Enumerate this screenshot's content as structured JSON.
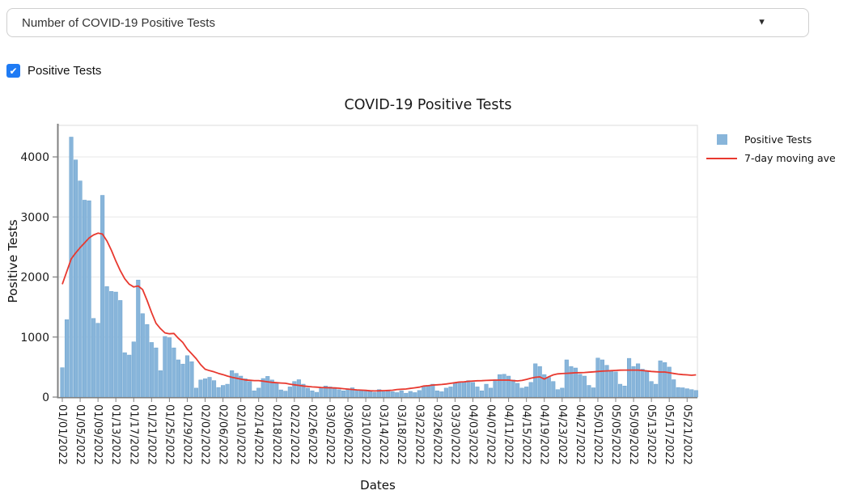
{
  "ui": {
    "dropdown": {
      "value": "Number of COVID-19 Positive Tests",
      "caret": "▼"
    },
    "checkbox": {
      "label": "Positive Tests",
      "checked": true,
      "check_glyph": "✔",
      "accent": "#1f7bf4"
    }
  },
  "chart_data": {
    "type": "bar",
    "title": "COVID-19 Positive Tests",
    "xlabel": "Dates",
    "ylabel": "Positive Tests",
    "ylim": [
      0,
      4540
    ],
    "yticks": [
      0,
      1000,
      2000,
      3000,
      4000
    ],
    "grid": true,
    "legend_position": "top-right",
    "x_tick_every": 4,
    "categories": [
      "01/01/2022",
      "01/02/2022",
      "01/03/2022",
      "01/04/2022",
      "01/05/2022",
      "01/06/2022",
      "01/07/2022",
      "01/08/2022",
      "01/09/2022",
      "01/10/2022",
      "01/11/2022",
      "01/12/2022",
      "01/13/2022",
      "01/14/2022",
      "01/15/2022",
      "01/16/2022",
      "01/17/2022",
      "01/18/2022",
      "01/19/2022",
      "01/20/2022",
      "01/21/2022",
      "01/22/2022",
      "01/23/2022",
      "01/24/2022",
      "01/25/2022",
      "01/26/2022",
      "01/27/2022",
      "01/28/2022",
      "01/29/2022",
      "01/30/2022",
      "01/31/2022",
      "02/01/2022",
      "02/02/2022",
      "02/03/2022",
      "02/04/2022",
      "02/05/2022",
      "02/06/2022",
      "02/07/2022",
      "02/08/2022",
      "02/09/2022",
      "02/10/2022",
      "02/11/2022",
      "02/12/2022",
      "02/13/2022",
      "02/14/2022",
      "02/15/2022",
      "02/16/2022",
      "02/17/2022",
      "02/18/2022",
      "02/19/2022",
      "02/20/2022",
      "02/21/2022",
      "02/22/2022",
      "02/23/2022",
      "02/24/2022",
      "02/25/2022",
      "02/26/2022",
      "02/27/2022",
      "02/28/2022",
      "03/01/2022",
      "03/02/2022",
      "03/03/2022",
      "03/04/2022",
      "03/05/2022",
      "03/06/2022",
      "03/07/2022",
      "03/08/2022",
      "03/09/2022",
      "03/10/2022",
      "03/11/2022",
      "03/12/2022",
      "03/13/2022",
      "03/14/2022",
      "03/15/2022",
      "03/16/2022",
      "03/17/2022",
      "03/18/2022",
      "03/19/2022",
      "03/20/2022",
      "03/21/2022",
      "03/22/2022",
      "03/23/2022",
      "03/24/2022",
      "03/25/2022",
      "03/26/2022",
      "03/27/2022",
      "03/28/2022",
      "03/29/2022",
      "03/30/2022",
      "03/31/2022",
      "04/01/2022",
      "04/02/2022",
      "04/03/2022",
      "04/04/2022",
      "04/05/2022",
      "04/06/2022",
      "04/07/2022",
      "04/08/2022",
      "04/09/2022",
      "04/10/2022",
      "04/11/2022",
      "04/12/2022",
      "04/13/2022",
      "04/14/2022",
      "04/15/2022",
      "04/16/2022",
      "04/17/2022",
      "04/18/2022",
      "04/19/2022",
      "04/20/2022",
      "04/21/2022",
      "04/22/2022",
      "04/23/2022",
      "04/24/2022",
      "04/25/2022",
      "04/26/2022",
      "04/27/2022",
      "04/28/2022",
      "04/29/2022",
      "04/30/2022",
      "05/01/2022",
      "05/02/2022",
      "05/03/2022",
      "05/04/2022",
      "05/05/2022",
      "05/06/2022",
      "05/07/2022",
      "05/08/2022",
      "05/09/2022",
      "05/10/2022",
      "05/11/2022",
      "05/12/2022",
      "05/13/2022",
      "05/14/2022",
      "05/15/2022",
      "05/16/2022",
      "05/17/2022",
      "05/18/2022",
      "05/19/2022",
      "05/20/2022",
      "05/21/2022",
      "05/22/2022",
      "05/23/2022"
    ],
    "series": [
      {
        "name": "Positive Tests",
        "type": "bar",
        "color": "#88b5da",
        "edge_color": "#6ba3cf",
        "values": [
          490,
          1290,
          4330,
          3950,
          3600,
          3280,
          3270,
          1310,
          1230,
          3360,
          1840,
          1760,
          1750,
          1610,
          740,
          700,
          920,
          1950,
          1390,
          1210,
          910,
          820,
          440,
          1010,
          990,
          820,
          620,
          550,
          690,
          590,
          150,
          285,
          305,
          330,
          275,
          160,
          195,
          215,
          440,
          395,
          350,
          305,
          260,
          105,
          150,
          310,
          345,
          285,
          240,
          120,
          100,
          170,
          260,
          290,
          215,
          150,
          105,
          80,
          150,
          185,
          170,
          160,
          125,
          105,
          140,
          155,
          125,
          105,
          110,
          95,
          80,
          125,
          90,
          105,
          90,
          75,
          105,
          65,
          95,
          75,
          110,
          185,
          195,
          215,
          105,
          90,
          150,
          170,
          245,
          255,
          245,
          275,
          245,
          170,
          105,
          215,
          150,
          290,
          375,
          380,
          350,
          285,
          230,
          150,
          170,
          245,
          555,
          510,
          375,
          330,
          260,
          125,
          150,
          620,
          510,
          485,
          380,
          350,
          195,
          155,
          650,
          620,
          530,
          440,
          420,
          215,
          185,
          645,
          510,
          555,
          465,
          440,
          260,
          215,
          605,
          575,
          500,
          290,
          160,
          155,
          140,
          125,
          110
        ]
      },
      {
        "name": "7-day moving ave",
        "type": "line",
        "color": "#e8392f",
        "values": [
          1880,
          2090,
          2300,
          2400,
          2490,
          2570,
          2650,
          2700,
          2730,
          2715,
          2600,
          2445,
          2265,
          2105,
          1970,
          1880,
          1835,
          1850,
          1790,
          1610,
          1410,
          1230,
          1140,
          1070,
          1055,
          1060,
          980,
          910,
          800,
          720,
          640,
          540,
          465,
          440,
          420,
          395,
          375,
          350,
          330,
          315,
          300,
          285,
          280,
          275,
          275,
          265,
          255,
          245,
          240,
          235,
          230,
          215,
          205,
          195,
          185,
          178,
          170,
          165,
          160,
          157,
          155,
          152,
          148,
          140,
          133,
          126,
          120,
          116,
          112,
          105,
          103,
          105,
          108,
          110,
          115,
          126,
          130,
          135,
          145,
          155,
          165,
          184,
          190,
          200,
          205,
          210,
          218,
          229,
          240,
          250,
          255,
          262,
          268,
          272,
          274,
          278,
          280,
          283,
          283,
          283,
          283,
          275,
          270,
          278,
          295,
          315,
          330,
          337,
          300,
          340,
          370,
          387,
          392,
          396,
          400,
          405,
          407,
          409,
          415,
          420,
          427,
          432,
          437,
          441,
          445,
          448,
          450,
          450,
          450,
          450,
          443,
          435,
          427,
          422,
          418,
          418,
          405,
          393,
          382,
          375,
          370,
          364,
          370
        ]
      }
    ]
  }
}
